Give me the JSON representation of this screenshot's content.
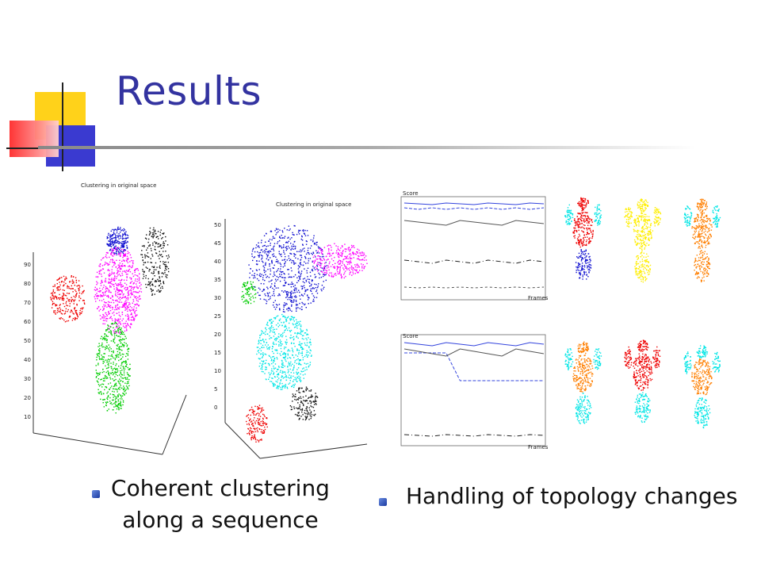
{
  "slide": {
    "title": "Results",
    "bullets": [
      {
        "line1": "Coherent clustering",
        "line2": "along a sequence"
      },
      {
        "text": "Handling of topology changes"
      }
    ]
  },
  "figures": {
    "left_plot_title": "Clustering in original space",
    "middle_plot_title": "Clustering in original space",
    "chart_top_label": "Score",
    "chart_bottom_label": "Score",
    "frames_label": "Frames"
  },
  "colors": {
    "title": "#3333a0",
    "deco_yellow": "#ffcc00",
    "deco_red": "#ff3333",
    "deco_blue": "#3333cc",
    "cluster_blue": "#1010d0",
    "cluster_magenta": "#ff00ff",
    "cluster_green": "#00cc00",
    "cluster_red": "#ee0000",
    "cluster_cyan": "#00e5e5",
    "cluster_black": "#111111",
    "cluster_yellow": "#ffee00",
    "cluster_orange": "#ff7f00"
  }
}
